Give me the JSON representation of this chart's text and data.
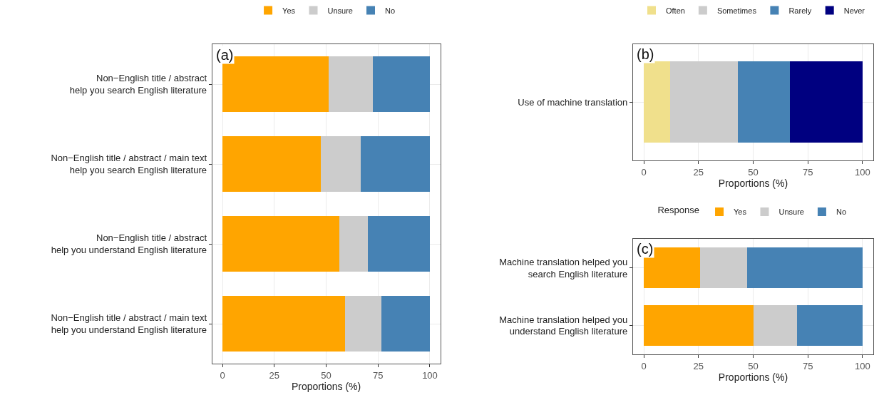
{
  "chart_data": [
    {
      "type": "bar",
      "orientation": "horizontal",
      "stacked": true,
      "annotations": [
        "(a)"
      ],
      "xlabel": "Proportions (%)",
      "categories": [
        "Non−English title / abstract\nhelp you search English literature",
        "Non−English title / abstract / main text\nhelp you search English literature",
        "Non−English title / abstract\nhelp you understand English literature",
        "Non−English title / abstract / main text\nhelp you understand English literature"
      ],
      "xlim": [
        -5,
        105
      ],
      "xticks": [
        0,
        25,
        50,
        75,
        100
      ],
      "grid": true,
      "legend": "top",
      "series": [
        {
          "name": "Yes",
          "color": "#ffa500",
          "values": [
            51.3,
            47.4,
            56.2,
            59.2
          ]
        },
        {
          "name": "Unsure",
          "color": "#cccccc",
          "values": [
            21.3,
            19.4,
            14.0,
            17.4
          ]
        },
        {
          "name": "No",
          "color": "#4682b4",
          "values": [
            27.4,
            33.2,
            29.8,
            23.4
          ]
        }
      ]
    },
    {
      "type": "bar",
      "orientation": "horizontal",
      "stacked": true,
      "annotations": [
        "(b)"
      ],
      "xlabel": "Proportions (%)",
      "categories": [
        "Use of machine translation"
      ],
      "xlim": [
        -5,
        105
      ],
      "xticks": [
        0,
        25,
        50,
        75,
        100
      ],
      "grid": true,
      "legend": "top",
      "series": [
        {
          "name": "Often",
          "color": "#f0e08c",
          "values": [
            12.1
          ]
        },
        {
          "name": "Sometimes",
          "color": "#cccccc",
          "values": [
            31.0
          ]
        },
        {
          "name": "Rarely",
          "color": "#4682b4",
          "values": [
            23.6
          ]
        },
        {
          "name": "Never",
          "color": "#000080",
          "values": [
            33.3
          ]
        }
      ]
    },
    {
      "type": "bar",
      "orientation": "horizontal",
      "stacked": true,
      "annotations": [
        "(c)"
      ],
      "xlabel": "Proportions (%)",
      "legend_title": "Response",
      "categories": [
        "Machine translation helped you\nsearch English literature",
        "Machine translation helped you\nunderstand English literature"
      ],
      "xlim": [
        -5,
        105
      ],
      "xticks": [
        0,
        25,
        50,
        75,
        100
      ],
      "grid": true,
      "legend": "top",
      "series": [
        {
          "name": "Yes",
          "color": "#ffa500",
          "values": [
            25.6,
            50.2
          ]
        },
        {
          "name": "Unsure",
          "color": "#cccccc",
          "values": [
            21.5,
            19.7
          ]
        },
        {
          "name": "No",
          "color": "#4682b4",
          "values": [
            52.9,
            30.1
          ]
        }
      ]
    }
  ]
}
